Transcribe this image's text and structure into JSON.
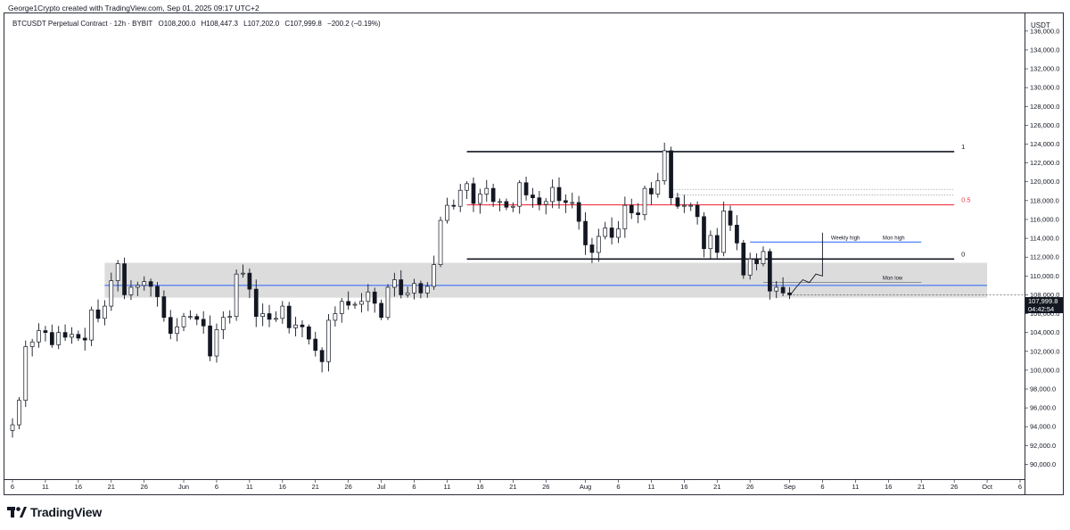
{
  "header": {
    "author": "George1Crypto created with TradingView.com, Sep 01, 2025 09:17 UTC+2"
  },
  "legend": {
    "symbol": "BTCUSDT Perpetual Contract · 12h · BYBIT",
    "open": "O108,200.0",
    "high": "H108,447.3",
    "low": "L107,202.0",
    "close": "C107,999.8",
    "change": "−200.2 (−0.19%)"
  },
  "currency": "USDT",
  "price_tag": {
    "price": "107,999.8",
    "countdown": "04:42:54"
  },
  "brand": {
    "name": "TradingView"
  },
  "colors": {
    "candle": "#131722",
    "zone": "#dcdcdc",
    "blue_line": "#2962ff",
    "red_line": "#f23645",
    "black_line": "#131722",
    "projection": "#2962ff"
  },
  "chart_data": {
    "type": "candlestick",
    "title": "BTCUSDT Perpetual Contract · 12h · BYBIT",
    "ylim": [
      89000,
      137500
    ],
    "y_ticks": [
      90000,
      92000,
      94000,
      96000,
      98000,
      100000,
      102000,
      104000,
      106000,
      108000,
      110000,
      112000,
      114000,
      116000,
      118000,
      120000,
      122000,
      124000,
      126000,
      128000,
      130000,
      132000,
      134000,
      136000
    ],
    "y_tick_labels": [
      "90,000.0",
      "92,000.0",
      "94,000.0",
      "96,000.0",
      "98,000.0",
      "100,000.0",
      "102,000.0",
      "104,000.0",
      "106,000.0",
      "108,000.0",
      "110,000.0",
      "112,000.0",
      "114,000.0",
      "116,000.0",
      "118,000.0",
      "120,000.0",
      "122,000.0",
      "124,000.0",
      "126,000.0",
      "128,000.0",
      "130,000.0",
      "132,000.0",
      "134,000.0",
      "136,000.0"
    ],
    "x_start": "2025-05-06",
    "x_end": "2025-10-06",
    "x_ticks": [
      {
        "date": "2025-05-06",
        "label": "6"
      },
      {
        "date": "2025-05-11",
        "label": "11"
      },
      {
        "date": "2025-05-16",
        "label": "16"
      },
      {
        "date": "2025-05-21",
        "label": "21"
      },
      {
        "date": "2025-05-26",
        "label": "26"
      },
      {
        "date": "2025-06-01",
        "label": "Jun"
      },
      {
        "date": "2025-06-06",
        "label": "6"
      },
      {
        "date": "2025-06-11",
        "label": "11"
      },
      {
        "date": "2025-06-16",
        "label": "16"
      },
      {
        "date": "2025-06-21",
        "label": "21"
      },
      {
        "date": "2025-06-26",
        "label": "26"
      },
      {
        "date": "2025-07-01",
        "label": "Jul"
      },
      {
        "date": "2025-07-06",
        "label": "6"
      },
      {
        "date": "2025-07-11",
        "label": "11"
      },
      {
        "date": "2025-07-16",
        "label": "16"
      },
      {
        "date": "2025-07-21",
        "label": "21"
      },
      {
        "date": "2025-07-26",
        "label": "26"
      },
      {
        "date": "2025-08-01",
        "label": "Aug"
      },
      {
        "date": "2025-08-06",
        "label": "6"
      },
      {
        "date": "2025-08-11",
        "label": "11"
      },
      {
        "date": "2025-08-16",
        "label": "16"
      },
      {
        "date": "2025-08-21",
        "label": "21"
      },
      {
        "date": "2025-08-26",
        "label": "26"
      },
      {
        "date": "2025-09-01",
        "label": "Sep"
      },
      {
        "date": "2025-09-06",
        "label": "6"
      },
      {
        "date": "2025-09-11",
        "label": "11"
      },
      {
        "date": "2025-09-16",
        "label": "16"
      },
      {
        "date": "2025-09-21",
        "label": "21"
      },
      {
        "date": "2025-09-26",
        "label": "26"
      },
      {
        "date": "2025-10-01",
        "label": "Oct"
      },
      {
        "date": "2025-10-06",
        "label": "6"
      }
    ],
    "candles_daily_close": [
      {
        "date": "2025-05-06",
        "close": 94200
      },
      {
        "date": "2025-05-07",
        "close": 96800
      },
      {
        "date": "2025-05-08",
        "close": 102500
      },
      {
        "date": "2025-05-09",
        "close": 103000
      },
      {
        "date": "2025-05-10",
        "close": 104200
      },
      {
        "date": "2025-05-11",
        "close": 104000
      },
      {
        "date": "2025-05-12",
        "close": 102700
      },
      {
        "date": "2025-05-13",
        "close": 104000
      },
      {
        "date": "2025-05-14",
        "close": 103500
      },
      {
        "date": "2025-05-15",
        "close": 103800
      },
      {
        "date": "2025-05-16",
        "close": 103400
      },
      {
        "date": "2025-05-17",
        "close": 103200
      },
      {
        "date": "2025-05-18",
        "close": 106400
      },
      {
        "date": "2025-05-19",
        "close": 105500
      },
      {
        "date": "2025-05-20",
        "close": 106800
      },
      {
        "date": "2025-05-21",
        "close": 109500
      },
      {
        "date": "2025-05-22",
        "close": 111300
      },
      {
        "date": "2025-05-23",
        "close": 108000
      },
      {
        "date": "2025-05-24",
        "close": 108800
      },
      {
        "date": "2025-05-25",
        "close": 109000
      },
      {
        "date": "2025-05-26",
        "close": 109400
      },
      {
        "date": "2025-05-27",
        "close": 108900
      },
      {
        "date": "2025-05-28",
        "close": 107800
      },
      {
        "date": "2025-05-29",
        "close": 105600
      },
      {
        "date": "2025-05-30",
        "close": 103900
      },
      {
        "date": "2025-05-31",
        "close": 104600
      },
      {
        "date": "2025-06-01",
        "close": 105700
      },
      {
        "date": "2025-06-02",
        "close": 105700
      },
      {
        "date": "2025-06-03",
        "close": 105400
      },
      {
        "date": "2025-06-04",
        "close": 104700
      },
      {
        "date": "2025-06-05",
        "close": 101500
      },
      {
        "date": "2025-06-06",
        "close": 104300
      },
      {
        "date": "2025-06-07",
        "close": 105600
      },
      {
        "date": "2025-06-08",
        "close": 105700
      },
      {
        "date": "2025-06-09",
        "close": 110200
      },
      {
        "date": "2025-06-10",
        "close": 110300
      },
      {
        "date": "2025-06-11",
        "close": 108600
      },
      {
        "date": "2025-06-12",
        "close": 105700
      },
      {
        "date": "2025-06-13",
        "close": 106000
      },
      {
        "date": "2025-06-14",
        "close": 105400
      },
      {
        "date": "2025-06-15",
        "close": 105500
      },
      {
        "date": "2025-06-16",
        "close": 106800
      },
      {
        "date": "2025-06-17",
        "close": 104500
      },
      {
        "date": "2025-06-18",
        "close": 104800
      },
      {
        "date": "2025-06-19",
        "close": 104600
      },
      {
        "date": "2025-06-20",
        "close": 103300
      },
      {
        "date": "2025-06-21",
        "close": 102100
      },
      {
        "date": "2025-06-22",
        "close": 100900
      },
      {
        "date": "2025-06-23",
        "close": 105300
      },
      {
        "date": "2025-06-24",
        "close": 106000
      },
      {
        "date": "2025-06-25",
        "close": 107300
      },
      {
        "date": "2025-06-26",
        "close": 106900
      },
      {
        "date": "2025-06-27",
        "close": 107000
      },
      {
        "date": "2025-06-28",
        "close": 107300
      },
      {
        "date": "2025-06-29",
        "close": 108300
      },
      {
        "date": "2025-06-30",
        "close": 107100
      },
      {
        "date": "2025-07-01",
        "close": 105600
      },
      {
        "date": "2025-07-02",
        "close": 108800
      },
      {
        "date": "2025-07-03",
        "close": 109600
      },
      {
        "date": "2025-07-04",
        "close": 108000
      },
      {
        "date": "2025-07-05",
        "close": 108200
      },
      {
        "date": "2025-07-06",
        "close": 109200
      },
      {
        "date": "2025-07-07",
        "close": 108200
      },
      {
        "date": "2025-07-08",
        "close": 108900
      },
      {
        "date": "2025-07-09",
        "close": 111200
      },
      {
        "date": "2025-07-10",
        "close": 115900
      },
      {
        "date": "2025-07-11",
        "close": 117500
      },
      {
        "date": "2025-07-12",
        "close": 117400
      },
      {
        "date": "2025-07-13",
        "close": 119100
      },
      {
        "date": "2025-07-14",
        "close": 119800
      },
      {
        "date": "2025-07-15",
        "close": 117700
      },
      {
        "date": "2025-07-16",
        "close": 118700
      },
      {
        "date": "2025-07-17",
        "close": 119300
      },
      {
        "date": "2025-07-18",
        "close": 117900
      },
      {
        "date": "2025-07-19",
        "close": 117900
      },
      {
        "date": "2025-07-20",
        "close": 117300
      },
      {
        "date": "2025-07-21",
        "close": 117400
      },
      {
        "date": "2025-07-22",
        "close": 119900
      },
      {
        "date": "2025-07-23",
        "close": 118600
      },
      {
        "date": "2025-07-24",
        "close": 118300
      },
      {
        "date": "2025-07-25",
        "close": 117600
      },
      {
        "date": "2025-07-26",
        "close": 117900
      },
      {
        "date": "2025-07-27",
        "close": 119400
      },
      {
        "date": "2025-07-28",
        "close": 118000
      },
      {
        "date": "2025-07-29",
        "close": 117800
      },
      {
        "date": "2025-07-30",
        "close": 117800
      },
      {
        "date": "2025-07-31",
        "close": 115800
      },
      {
        "date": "2025-08-01",
        "close": 113300
      },
      {
        "date": "2025-08-02",
        "close": 112500
      },
      {
        "date": "2025-08-03",
        "close": 114200
      },
      {
        "date": "2025-08-04",
        "close": 115100
      },
      {
        "date": "2025-08-05",
        "close": 114100
      },
      {
        "date": "2025-08-06",
        "close": 115000
      },
      {
        "date": "2025-08-07",
        "close": 117500
      },
      {
        "date": "2025-08-08",
        "close": 116700
      },
      {
        "date": "2025-08-09",
        "close": 116500
      },
      {
        "date": "2025-08-10",
        "close": 119300
      },
      {
        "date": "2025-08-11",
        "close": 118700
      },
      {
        "date": "2025-08-12",
        "close": 120100
      },
      {
        "date": "2025-08-13",
        "close": 123300
      },
      {
        "date": "2025-08-14",
        "close": 118300
      },
      {
        "date": "2025-08-15",
        "close": 117400
      },
      {
        "date": "2025-08-16",
        "close": 117500
      },
      {
        "date": "2025-08-17",
        "close": 117500
      },
      {
        "date": "2025-08-18",
        "close": 116300
      },
      {
        "date": "2025-08-19",
        "close": 112900
      },
      {
        "date": "2025-08-20",
        "close": 114300
      },
      {
        "date": "2025-08-21",
        "close": 112500
      },
      {
        "date": "2025-08-22",
        "close": 116900
      },
      {
        "date": "2025-08-23",
        "close": 115400
      },
      {
        "date": "2025-08-24",
        "close": 113500
      },
      {
        "date": "2025-08-25",
        "close": 110100
      },
      {
        "date": "2025-08-26",
        "close": 111800
      },
      {
        "date": "2025-08-27",
        "close": 111300
      },
      {
        "date": "2025-08-28",
        "close": 112600
      },
      {
        "date": "2025-08-29",
        "close": 108400
      },
      {
        "date": "2025-08-30",
        "close": 108800
      },
      {
        "date": "2025-08-31",
        "close": 108200
      },
      {
        "date": "2025-09-01",
        "close": 108000
      }
    ],
    "annotations": {
      "fib_levels": [
        {
          "label": "1",
          "price": 123200
        },
        {
          "label": "0.5",
          "price": 117550
        },
        {
          "label": "0",
          "price": 111800
        }
      ],
      "zone": {
        "top": 111400,
        "bottom": 107700,
        "start": "2025-05-20",
        "end": "2025-10-01"
      },
      "blue_level": {
        "price": 109000
      },
      "weekly_high": {
        "label": "Weekly high",
        "price": 113600
      },
      "mon_high": {
        "label": "Mon high",
        "price": 113600
      },
      "mon_low": {
        "label": "Mon low",
        "price": 109300
      },
      "dotted_levels": [
        119200,
        118600
      ],
      "projection_peak": 114600
    }
  }
}
